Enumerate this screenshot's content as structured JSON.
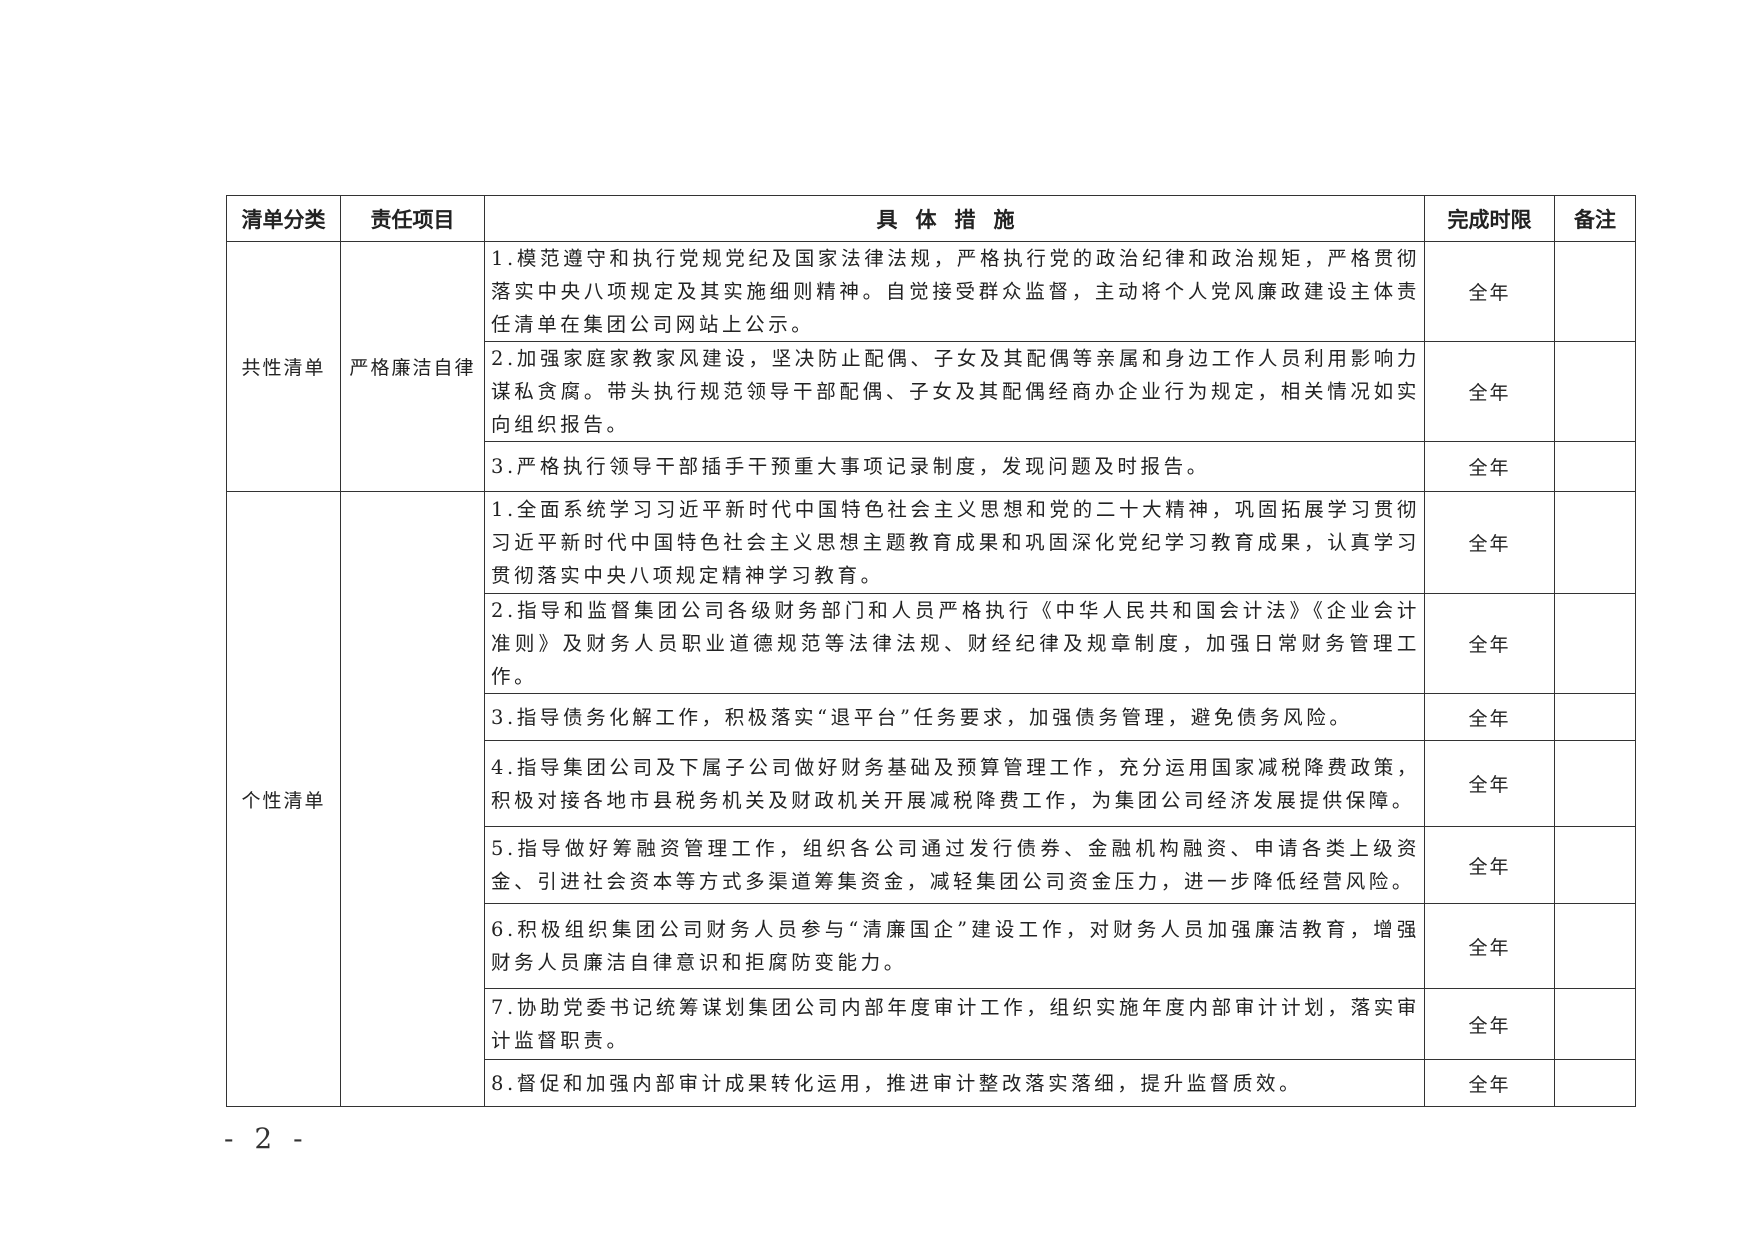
{
  "table": {
    "headers": [
      "清单分类",
      "责任项目",
      "具体措施",
      "完成时限",
      "备注"
    ],
    "groups": [
      {
        "category": "共性清单",
        "item": "严格廉洁自律",
        "rows": [
          {
            "measure": "1.模范遵守和执行党规党纪及国家法律法规，严格执行党的政治纪律和政治规矩，严格贯彻落实中央八项规定及其实施细则精神。自觉接受群众监督，主动将个人党风廉政建设主体责任清单在集团公司网站上公示。",
            "deadline": "全年",
            "note": ""
          },
          {
            "measure": "2.加强家庭家教家风建设，坚决防止配偶、子女及其配偶等亲属和身边工作人员利用影响力谋私贪腐。带头执行规范领导干部配偶、子女及其配偶经商办企业行为规定，相关情况如实向组织报告。",
            "deadline": "全年",
            "note": ""
          },
          {
            "measure": "3.严格执行领导干部插手干预重大事项记录制度，发现问题及时报告。",
            "deadline": "全年",
            "note": ""
          }
        ]
      },
      {
        "category": "个性清单",
        "item": "",
        "rows": [
          {
            "measure": "1.全面系统学习习近平新时代中国特色社会主义思想和党的二十大精神，巩固拓展学习贯彻习近平新时代中国特色社会主义思想主题教育成果和巩固深化党纪学习教育成果，认真学习贯彻落实中央八项规定精神学习教育。",
            "deadline": "全年",
            "note": ""
          },
          {
            "measure": "2.指导和监督集团公司各级财务部门和人员严格执行《中华人民共和国会计法》《企业会计准则》及财务人员职业道德规范等法律法规、财经纪律及规章制度，加强日常财务管理工作。",
            "deadline": "全年",
            "note": ""
          },
          {
            "measure": "3.指导债务化解工作，积极落实“退平台”任务要求，加强债务管理，避免债务风险。",
            "deadline": "全年",
            "note": ""
          },
          {
            "measure": "4.指导集团公司及下属子公司做好财务基础及预算管理工作，充分运用国家减税降费政策，积极对接各地市县税务机关及财政机关开展减税降费工作，为集团公司经济发展提供保障。",
            "deadline": "全年",
            "note": ""
          },
          {
            "measure": "5.指导做好筹融资管理工作，组织各公司通过发行债券、金融机构融资、申请各类上级资金、引进社会资本等方式多渠道筹集资金，减轻集团公司资金压力，进一步降低经营风险。",
            "deadline": "全年",
            "note": ""
          },
          {
            "measure": "6.积极组织集团公司财务人员参与“清廉国企”建设工作，对财务人员加强廉洁教育，增强财务人员廉洁自律意识和拒腐防变能力。",
            "deadline": "全年",
            "note": ""
          },
          {
            "measure": "7.协助党委书记统筹谋划集团公司内部年度审计工作，组织实施年度内部审计计划，落实审计监督职责。",
            "deadline": "全年",
            "note": ""
          },
          {
            "measure": "8.督促和加强内部审计成果转化运用，推进审计整改落实落细，提升监督质效。",
            "deadline": "全年",
            "note": ""
          }
        ]
      }
    ]
  },
  "page_number": "- 2 -"
}
